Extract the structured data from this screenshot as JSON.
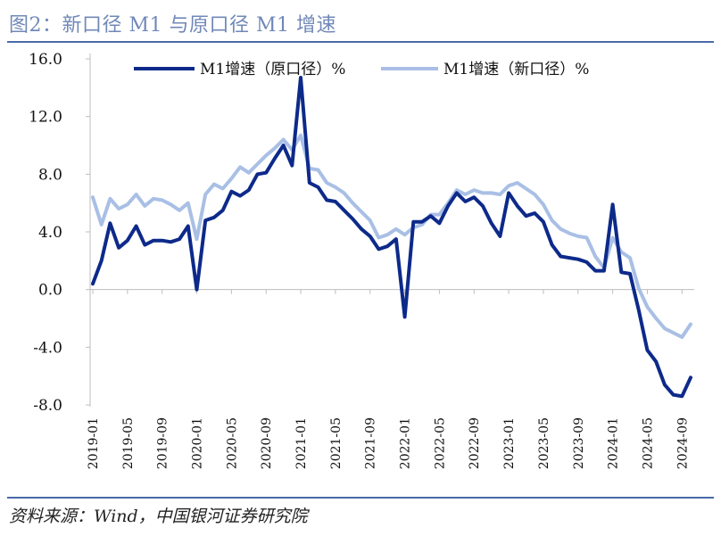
{
  "figure": {
    "title": "图2：新口径 M1 与原口径 M1 增速",
    "source": "资料来源：Wind，中国银河证券研究院"
  },
  "colors": {
    "old": "#0d2a8a",
    "new": "#a9bfe5",
    "rule": "#4a6aa8",
    "title": "#7088b8"
  },
  "chart_data": {
    "type": "line",
    "ylim": [
      -8,
      16
    ],
    "yticks": [
      "16.0",
      "12.0",
      "8.0",
      "4.0",
      "0.0",
      "-4.0",
      "-8.0"
    ],
    "grid": false,
    "legend": "top",
    "x": [
      "2019-01",
      "2019-02",
      "2019-03",
      "2019-04",
      "2019-05",
      "2019-06",
      "2019-07",
      "2019-08",
      "2019-09",
      "2019-10",
      "2019-11",
      "2019-12",
      "2020-01",
      "2020-02",
      "2020-03",
      "2020-04",
      "2020-05",
      "2020-06",
      "2020-07",
      "2020-08",
      "2020-09",
      "2020-10",
      "2020-11",
      "2020-12",
      "2021-01",
      "2021-02",
      "2021-03",
      "2021-04",
      "2021-05",
      "2021-06",
      "2021-07",
      "2021-08",
      "2021-09",
      "2021-10",
      "2021-11",
      "2021-12",
      "2022-01",
      "2022-02",
      "2022-03",
      "2022-04",
      "2022-05",
      "2022-06",
      "2022-07",
      "2022-08",
      "2022-09",
      "2022-10",
      "2022-11",
      "2022-12",
      "2023-01",
      "2023-02",
      "2023-03",
      "2023-04",
      "2023-05",
      "2023-06",
      "2023-07",
      "2023-08",
      "2023-09",
      "2023-10",
      "2023-11",
      "2023-12",
      "2024-01",
      "2024-02",
      "2024-03",
      "2024-04",
      "2024-05",
      "2024-06",
      "2024-07",
      "2024-08",
      "2024-09",
      "2024-10"
    ],
    "xticks": [
      "2019-01",
      "2019-05",
      "2019-09",
      "2020-01",
      "2020-05",
      "2020-09",
      "2021-01",
      "2021-05",
      "2021-09",
      "2022-01",
      "2022-05",
      "2022-09",
      "2023-01",
      "2023-05",
      "2023-09",
      "2024-01",
      "2024-05",
      "2024-09"
    ],
    "series": [
      {
        "name": "M1增速（原口径）%",
        "color": "#0d2a8a",
        "values": [
          0.4,
          2.0,
          4.6,
          2.9,
          3.4,
          4.4,
          3.1,
          3.4,
          3.4,
          3.3,
          3.5,
          4.4,
          0.0,
          4.8,
          5.0,
          5.5,
          6.8,
          6.5,
          6.9,
          8.0,
          8.1,
          9.1,
          10.0,
          8.6,
          14.7,
          7.4,
          7.1,
          6.2,
          6.1,
          5.5,
          4.9,
          4.2,
          3.7,
          2.8,
          3.0,
          3.5,
          -1.9,
          4.7,
          4.7,
          5.1,
          4.6,
          5.8,
          6.7,
          6.1,
          6.4,
          5.8,
          4.6,
          3.7,
          6.7,
          5.8,
          5.1,
          5.3,
          4.7,
          3.1,
          2.3,
          2.2,
          2.1,
          1.9,
          1.3,
          1.3,
          5.9,
          1.2,
          1.1,
          -1.4,
          -4.2,
          -5.0,
          -6.6,
          -7.3,
          -7.4,
          -6.1
        ]
      },
      {
        "name": "M1增速（新口径）%",
        "color": "#a9bfe5",
        "values": [
          6.4,
          4.5,
          6.3,
          5.6,
          5.9,
          6.6,
          5.8,
          6.3,
          6.2,
          5.9,
          5.5,
          6.0,
          3.5,
          6.6,
          7.3,
          7.0,
          7.7,
          8.5,
          8.1,
          8.7,
          9.3,
          9.8,
          10.4,
          9.7,
          10.7,
          8.4,
          8.3,
          7.4,
          7.1,
          6.7,
          6.0,
          5.4,
          4.8,
          3.6,
          3.8,
          4.2,
          3.8,
          4.3,
          4.5,
          5.2,
          5.2,
          6.0,
          6.9,
          6.6,
          6.9,
          6.7,
          6.7,
          6.6,
          7.2,
          7.4,
          7.0,
          6.6,
          5.9,
          4.8,
          4.2,
          3.9,
          3.7,
          3.6,
          2.3,
          1.5,
          3.6,
          2.6,
          2.2,
          0.1,
          -1.2,
          -2.0,
          -2.7,
          -3.0,
          -3.3,
          -2.4
        ]
      }
    ]
  }
}
